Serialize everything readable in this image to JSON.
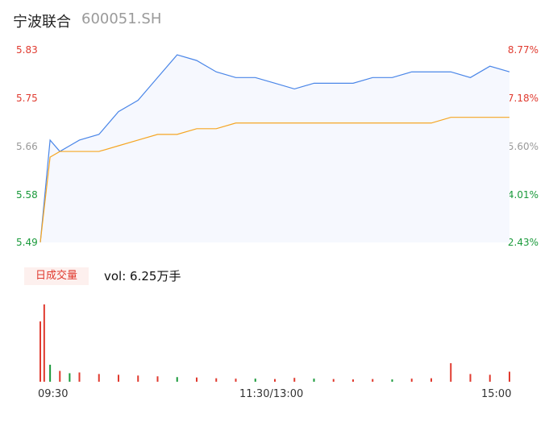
{
  "header": {
    "name": "宁波联合",
    "code": "600051.SH"
  },
  "volume_panel": {
    "badge": "日成交量",
    "label": "vol: 6.25万手"
  },
  "colors": {
    "up": "#e03a2f",
    "down": "#1a9a3b",
    "flat": "#999999",
    "price_line": "#4a86e8",
    "avg_line": "#f5a623"
  },
  "chart_data": [
    {
      "type": "line",
      "title": "",
      "y_ticks_left": [
        "5.83",
        "5.75",
        "5.66",
        "5.58",
        "5.49"
      ],
      "y_ticks_right": [
        "8.77%",
        "7.18%",
        "5.60%",
        "4.01%",
        "2.43%"
      ],
      "x_ticks": [
        "09:30",
        "11:30/13:00",
        "15:00"
      ],
      "ylim": [
        5.49,
        5.83
      ],
      "x": [
        "09:30",
        "09:35",
        "09:40",
        "09:45",
        "09:50",
        "10:00",
        "10:10",
        "10:20",
        "10:30",
        "10:40",
        "10:50",
        "11:00",
        "11:10",
        "11:20",
        "11:30",
        "13:10",
        "13:20",
        "13:30",
        "13:40",
        "13:50",
        "14:00",
        "14:10",
        "14:20",
        "14:30",
        "14:40",
        "14:50",
        "15:00"
      ],
      "series": [
        {
          "values": [
            5.49,
            5.67,
            5.65,
            5.66,
            5.67,
            5.68,
            5.72,
            5.74,
            5.78,
            5.82,
            5.81,
            5.79,
            5.78,
            5.78,
            5.77,
            5.76,
            5.77,
            5.77,
            5.77,
            5.78,
            5.78,
            5.79,
            5.79,
            5.79,
            5.78,
            5.8,
            5.79
          ]
        },
        {
          "values": [
            5.49,
            5.64,
            5.65,
            5.65,
            5.65,
            5.65,
            5.66,
            5.67,
            5.68,
            5.68,
            5.69,
            5.69,
            5.7,
            5.7,
            5.7,
            5.7,
            5.7,
            5.7,
            5.7,
            5.7,
            5.7,
            5.7,
            5.7,
            5.71,
            5.71,
            5.71,
            5.71
          ]
        }
      ]
    },
    {
      "type": "bar",
      "title": "",
      "x": [
        "09:30",
        "09:32",
        "09:35",
        "09:40",
        "09:45",
        "09:50",
        "10:00",
        "10:10",
        "10:20",
        "10:30",
        "10:40",
        "10:50",
        "11:00",
        "11:10",
        "11:20",
        "11:30",
        "13:10",
        "13:20",
        "13:30",
        "13:40",
        "13:50",
        "14:00",
        "14:10",
        "14:20",
        "14:30",
        "14:40",
        "14:50",
        "15:00"
      ],
      "values": [
        780,
        1000,
        220,
        140,
        110,
        120,
        100,
        90,
        80,
        70,
        60,
        55,
        45,
        40,
        40,
        35,
        50,
        40,
        35,
        30,
        35,
        30,
        40,
        45,
        240,
        100,
        90,
        130
      ],
      "directions": [
        "up",
        "up",
        "down",
        "up",
        "down",
        "up",
        "up",
        "up",
        "up",
        "up",
        "down",
        "up",
        "up",
        "up",
        "down",
        "up",
        "up",
        "down",
        "up",
        "up",
        "up",
        "down",
        "up",
        "up",
        "up",
        "up",
        "up",
        "up"
      ]
    }
  ]
}
